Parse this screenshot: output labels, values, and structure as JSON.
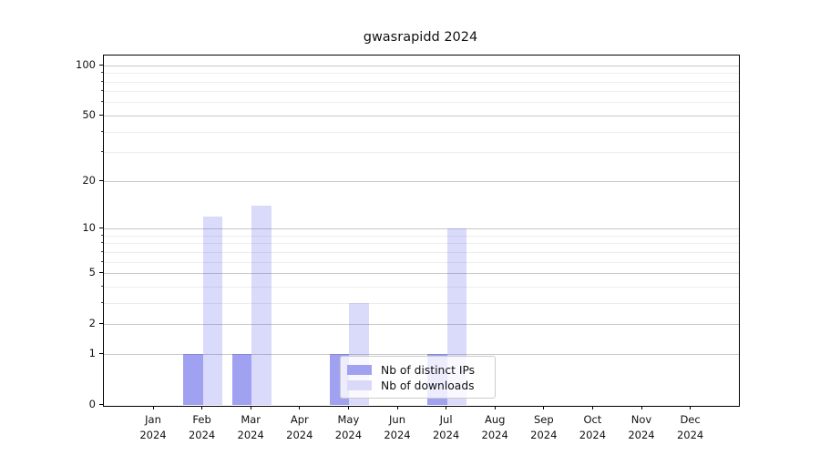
{
  "figure": {
    "title": "gwasrapidd 2024"
  },
  "chart_data": {
    "type": "bar",
    "title": "gwasrapidd 2024",
    "x": {
      "months": [
        "Jan",
        "Feb",
        "Mar",
        "Apr",
        "May",
        "Jun",
        "Jul",
        "Aug",
        "Sep",
        "Oct",
        "Nov",
        "Dec"
      ],
      "year": "2024"
    },
    "series": [
      {
        "name": "Nb of distinct IPs",
        "values": [
          0,
          1,
          1,
          0,
          1,
          0,
          1,
          0,
          0,
          0,
          0,
          0
        ],
        "color": "rgba(68,68,230,0.5)",
        "legend_swatch": "#a1a1f2"
      },
      {
        "name": "Nb of downloads",
        "values": [
          0,
          12,
          14,
          0,
          3,
          0,
          10,
          0,
          0,
          0,
          0,
          0
        ],
        "color": "rgba(68,68,230,0.2)",
        "legend_swatch": "#dadaf8"
      }
    ],
    "y_axis": {
      "scale": "log1p",
      "major_ticks": [
        0,
        1,
        2,
        5,
        10,
        20,
        50,
        100
      ],
      "minor_ticks": [
        3,
        4,
        6,
        7,
        8,
        9,
        30,
        40,
        60,
        70,
        80,
        90
      ]
    },
    "grid": {
      "major_color": "#c8c8c8",
      "minor_color": "#ededed"
    },
    "legend": {
      "position": "lower-center",
      "entries": [
        "Nb of distinct IPs",
        "Nb of downloads"
      ]
    }
  }
}
